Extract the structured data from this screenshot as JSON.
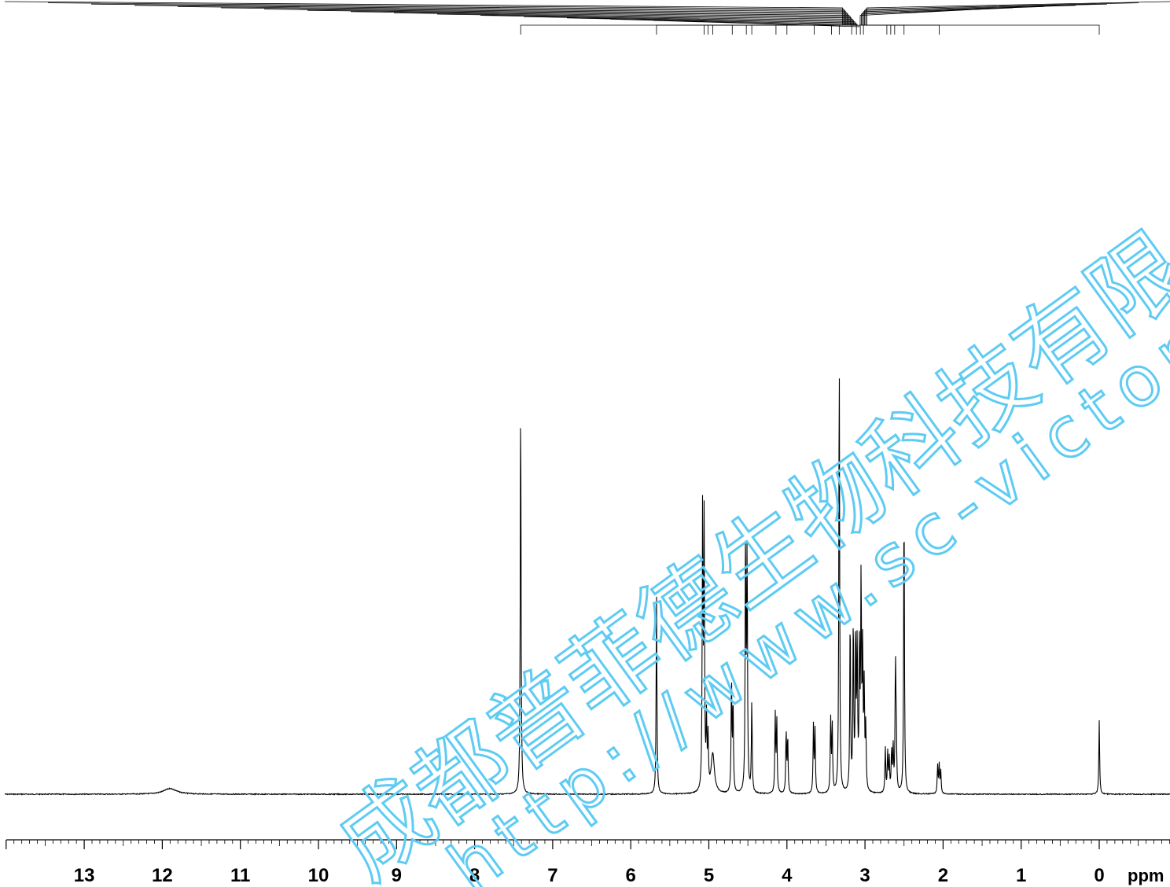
{
  "chart_data": {
    "type": "line",
    "title": "",
    "xlabel": "ppm",
    "ylabel": "",
    "xlim": [
      14.0,
      -0.9
    ],
    "x_reversed": true,
    "grid": false,
    "legend": "none",
    "x_ticks": [
      13,
      12,
      11,
      10,
      9,
      8,
      7,
      6,
      5,
      4,
      3,
      2,
      1,
      0
    ],
    "x_tick_labels": [
      "13",
      "12",
      "11",
      "10",
      "9",
      "8",
      "7",
      "6",
      "5",
      "4",
      "3",
      "2",
      "1",
      "0"
    ],
    "series": [
      {
        "peaks_ppm": [
          11.9,
          7.41,
          5.67,
          5.08,
          5.06,
          5.03,
          5.01,
          4.95,
          4.71,
          4.69,
          4.53,
          4.51,
          4.45,
          4.15,
          4.13,
          4.01,
          3.99,
          3.66,
          3.64,
          3.44,
          3.42,
          3.33,
          3.19,
          3.15,
          3.12,
          3.1,
          3.07,
          3.05,
          3.03,
          3.01,
          2.99,
          2.74,
          2.71,
          2.69,
          2.66,
          2.64,
          2.61,
          2.6,
          2.5,
          2.07,
          2.05,
          2.03,
          0.0
        ],
        "relative_intensity": [
          0.01,
          0.71,
          0.35,
          0.49,
          0.47,
          0.12,
          0.09,
          0.07,
          0.2,
          0.16,
          0.45,
          0.43,
          0.16,
          0.14,
          0.13,
          0.11,
          0.1,
          0.12,
          0.11,
          0.13,
          0.12,
          0.79,
          0.31,
          0.3,
          0.27,
          0.26,
          0.25,
          0.37,
          0.24,
          0.18,
          0.11,
          0.08,
          0.07,
          0.06,
          0.07,
          0.08,
          0.22,
          0.1,
          0.52,
          0.05,
          0.05,
          0.04,
          0.13
        ],
        "baseline": 0
      }
    ],
    "integral_markers_ppm": [
      7.41,
      5.67,
      5.06,
      5.01,
      4.95,
      4.7,
      4.52,
      4.45,
      4.14,
      4.0,
      3.65,
      3.43,
      3.33,
      3.17,
      3.11,
      3.06,
      3.02,
      2.72,
      2.67,
      2.62,
      2.5,
      2.05,
      0.0
    ],
    "watermark": {
      "line1": "成都普菲德生物科技有限公",
      "line2": "http://www.sc-victory"
    },
    "colors": {
      "trace": "#000000",
      "watermark": "#5ecbf3",
      "background": "#ffffff"
    }
  }
}
